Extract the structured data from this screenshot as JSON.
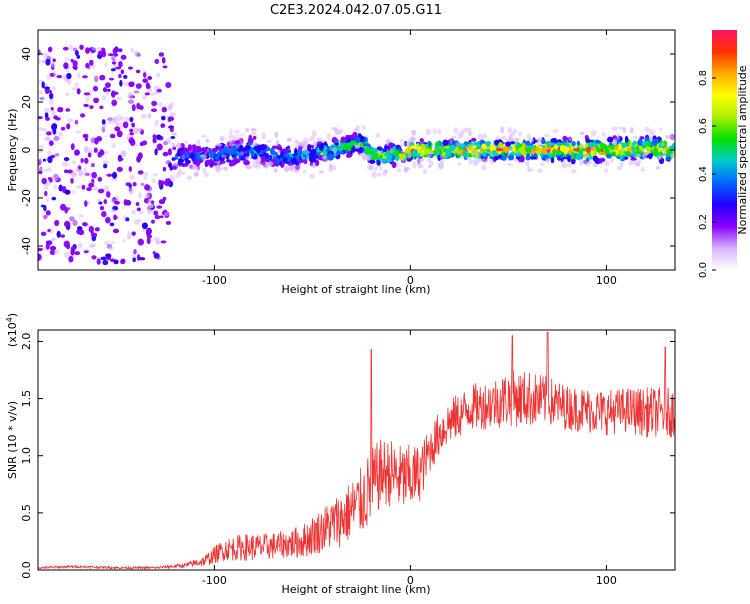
{
  "title": "C2E3.2024.042.07.05.G11",
  "chart_data": [
    {
      "type": "heatmap",
      "xlabel": "Height of straight line (km)",
      "ylabel": "Frequency (Hz)",
      "xlim": [
        -190,
        135
      ],
      "ylim": [
        -50,
        50
      ],
      "xticks": [
        -100,
        0,
        100
      ],
      "yticks": [
        -40,
        -20,
        0,
        20,
        40
      ],
      "colorbar": {
        "label": "Normalized spectral amplitude",
        "range": [
          0,
          1
        ],
        "ticks": [
          0.0,
          0.2,
          0.4,
          0.6,
          0.8
        ],
        "colors": [
          "#ffffff",
          "#d9b3ff",
          "#8800ff",
          "#2200ff",
          "#0066ff",
          "#00cccc",
          "#00e000",
          "#aaee00",
          "#ffff00",
          "#ffaa00",
          "#ff3300",
          "#ff1166"
        ]
      },
      "trace": [
        {
          "x": -190,
          "f": -2,
          "halfwidth": 45,
          "amp": 0.25
        },
        {
          "x": -125,
          "f": -2,
          "halfwidth": 45,
          "amp": 0.25
        },
        {
          "x": -120,
          "f": -3,
          "halfwidth": 4,
          "amp": 0.35
        },
        {
          "x": -100,
          "f": -2,
          "halfwidth": 4,
          "amp": 0.4
        },
        {
          "x": -80,
          "f": 0,
          "halfwidth": 4,
          "amp": 0.45
        },
        {
          "x": -65,
          "f": -3,
          "halfwidth": 3,
          "amp": 0.45
        },
        {
          "x": -50,
          "f": -2,
          "halfwidth": 3,
          "amp": 0.5
        },
        {
          "x": -40,
          "f": 0,
          "halfwidth": 3,
          "amp": 0.55
        },
        {
          "x": -30,
          "f": 2,
          "halfwidth": 3,
          "amp": 0.6
        },
        {
          "x": -25,
          "f": 3,
          "halfwidth": 3,
          "amp": 0.6
        },
        {
          "x": -20,
          "f": -2,
          "halfwidth": 2.5,
          "amp": 0.7
        },
        {
          "x": -5,
          "f": -2,
          "halfwidth": 2.5,
          "amp": 0.8
        },
        {
          "x": 0,
          "f": 0,
          "halfwidth": 2.5,
          "amp": 0.9
        },
        {
          "x": 50,
          "f": 0,
          "halfwidth": 2.5,
          "amp": 0.9
        },
        {
          "x": 100,
          "f": 0,
          "halfwidth": 3,
          "amp": 0.9
        },
        {
          "x": 115,
          "f": 1,
          "halfwidth": 3,
          "amp": 0.85
        },
        {
          "x": 135,
          "f": 0,
          "halfwidth": 3,
          "amp": 0.8
        }
      ]
    },
    {
      "type": "line",
      "xlabel": "Height of straight line (km)",
      "ylabel": "SNR (10 * v/v)",
      "yscale_label": "(x10",
      "yscale_exp": "4",
      "yscale_close": ")",
      "xlim": [
        -190,
        135
      ],
      "ylim": [
        0,
        2.1
      ],
      "xticks": [
        -100,
        0,
        100
      ],
      "yticks": [
        0.0,
        0.5,
        1.0,
        1.5,
        2.0
      ],
      "color": "#ee3333",
      "series": [
        {
          "x": [
            -190,
            -170,
            -150,
            -130,
            -115,
            -105,
            -95,
            -85,
            -75,
            -65,
            -55,
            -45,
            -35,
            -25,
            -20,
            -15,
            -10,
            -5,
            0,
            5,
            10,
            15,
            20,
            25,
            30,
            40,
            50,
            60,
            70,
            80,
            90,
            100,
            110,
            120,
            135
          ],
          "mean": [
            0.02,
            0.03,
            0.02,
            0.02,
            0.04,
            0.08,
            0.18,
            0.2,
            0.2,
            0.22,
            0.25,
            0.35,
            0.45,
            0.6,
            0.72,
            0.85,
            0.85,
            0.8,
            0.8,
            0.85,
            1.05,
            1.2,
            1.3,
            1.35,
            1.42,
            1.45,
            1.5,
            1.5,
            1.48,
            1.42,
            1.4,
            1.38,
            1.4,
            1.38,
            1.38
          ],
          "noise": [
            0.01,
            0.01,
            0.01,
            0.01,
            0.02,
            0.05,
            0.1,
            0.12,
            0.12,
            0.12,
            0.15,
            0.2,
            0.25,
            0.3,
            0.35,
            0.3,
            0.3,
            0.3,
            0.3,
            0.25,
            0.2,
            0.2,
            0.2,
            0.2,
            0.2,
            0.22,
            0.25,
            0.25,
            0.22,
            0.2,
            0.2,
            0.2,
            0.2,
            0.22,
            0.22
          ],
          "peaks": [
            {
              "x": -20,
              "y": 1.93
            },
            {
              "x": 52,
              "y": 2.05
            },
            {
              "x": 70,
              "y": 2.08
            },
            {
              "x": 130,
              "y": 1.95
            }
          ]
        }
      ]
    }
  ]
}
